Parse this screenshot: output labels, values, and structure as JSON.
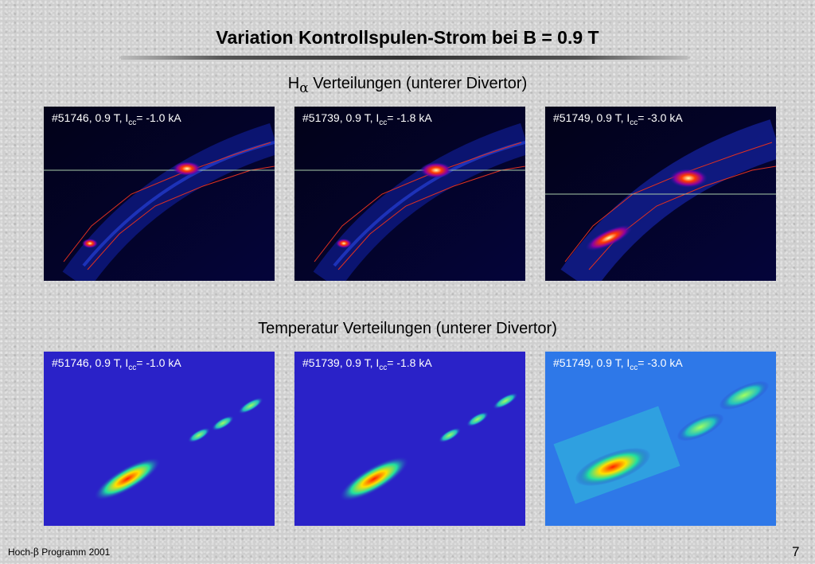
{
  "title": "Variation Kontrollspulen-Strom bei B = 0.9 T",
  "section_halpha": {
    "prefix": "H",
    "symbol": "α",
    "text": " Verteilungen (unterer Divertor)"
  },
  "section_temp": "Temperatur Verteilungen (unterer Divertor)",
  "panels": [
    {
      "shot": "#51746, 0.9 T, I",
      "sub": "cc",
      "value": "= -1.0 kA"
    },
    {
      "shot": "#51739, 0.9 T, I",
      "sub": "cc",
      "value": "= -1.8 kA"
    },
    {
      "shot": "#51749, 0.9 T, I",
      "sub": "cc",
      "value": "= -3.0 kA"
    }
  ],
  "footer": {
    "left_prefix": "Hoch-",
    "left_symbol": "β",
    "left_suffix": " Programm 2001",
    "page": "7"
  }
}
